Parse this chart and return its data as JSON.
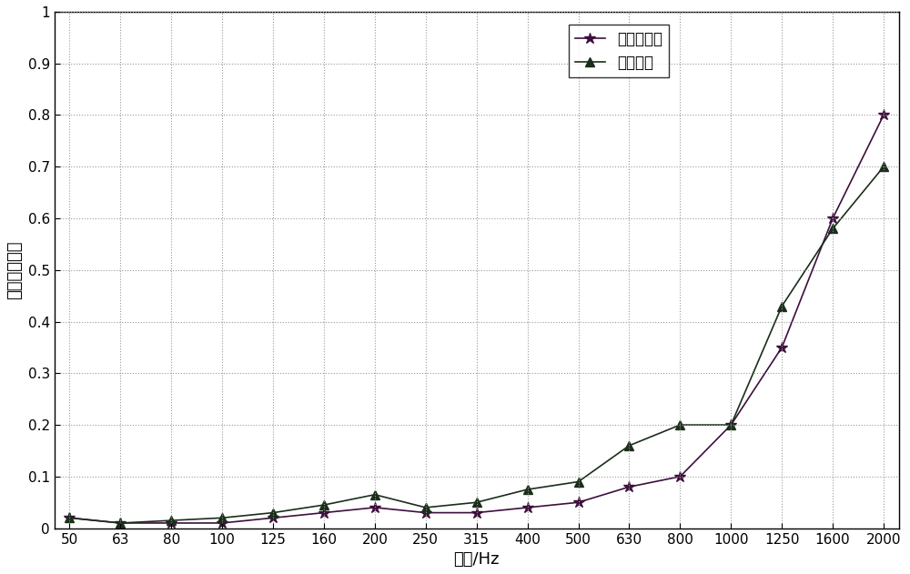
{
  "x_labels": [
    "50",
    "63",
    "80",
    "100",
    "125",
    "160",
    "200",
    "250",
    "315",
    "400",
    "500",
    "630",
    "800",
    "1000",
    "1250",
    "1600",
    "2000"
  ],
  "series1_y": [
    0.02,
    0.01,
    0.01,
    0.01,
    0.02,
    0.03,
    0.04,
    0.03,
    0.03,
    0.04,
    0.05,
    0.08,
    0.1,
    0.2,
    0.35,
    0.6,
    0.8
  ],
  "series2_y": [
    0.02,
    0.01,
    0.015,
    0.02,
    0.03,
    0.045,
    0.065,
    0.04,
    0.05,
    0.075,
    0.09,
    0.16,
    0.2,
    0.2,
    0.43,
    0.58,
    0.7
  ],
  "series1_label": "本发明结果",
  "series2_label": "测量实验",
  "series1_color": "#3d0f3d",
  "series2_color": "#1a2e1a",
  "series1_marker": "*",
  "series2_marker": "^",
  "xlabel": "频率/Hz",
  "ylabel": "半均散射系数",
  "ylim": [
    0,
    1.0
  ],
  "ytick_labels": [
    "0",
    "0.1",
    "0.2",
    "0.3",
    "0.4",
    "0.5",
    "0.6",
    "0.7",
    "0.8",
    "0.9",
    "1"
  ],
  "ytick_values": [
    0.0,
    0.1,
    0.2,
    0.3,
    0.4,
    0.5,
    0.6,
    0.7,
    0.8,
    0.9,
    1.0
  ],
  "background_color": "#ffffff",
  "grid_color": "#999999",
  "axis_color": "#000000",
  "font_size": 13,
  "legend_fontsize": 12,
  "tick_fontsize": 11,
  "line_width": 1.2,
  "marker_size1": 9,
  "marker_size2": 7
}
